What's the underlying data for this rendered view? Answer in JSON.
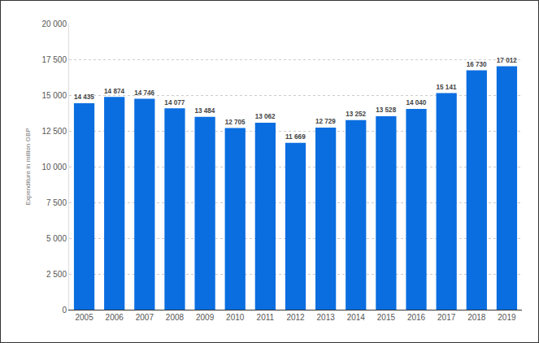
{
  "chart_data": {
    "type": "bar",
    "y_axis_label": "Expenditure in million GBP",
    "categories": [
      "2005",
      "2006",
      "2007",
      "2008",
      "2009",
      "2010",
      "2011",
      "2012",
      "2013",
      "2014",
      "2015",
      "2016",
      "2017",
      "2018",
      "2019"
    ],
    "values": [
      14435,
      14874,
      14746,
      14077,
      13484,
      12705,
      13062,
      11669,
      12729,
      13252,
      13528,
      14040,
      15141,
      16730,
      17012
    ],
    "value_labels": [
      "14 435",
      "14 874",
      "14 746",
      "14 077",
      "13 484",
      "12 705",
      "13 062",
      "11 669",
      "12 729",
      "13 252",
      "13 528",
      "14 040",
      "15 141",
      "16 730",
      "17 012"
    ],
    "color": "#0b6ee0",
    "ylim": [
      0,
      20000
    ],
    "yticks": [
      0,
      {
        "value": 2500,
        "label": "2 500"
      },
      {
        "value": 5000,
        "label": "5 000"
      },
      {
        "value": 7500,
        "label": "7 500"
      },
      {
        "value": 10000,
        "label": "10 000"
      },
      {
        "value": 12500,
        "label": "12 500"
      },
      {
        "value": 15000,
        "label": "15 000"
      },
      {
        "value": 17500,
        "label": "17 500"
      },
      {
        "value": 20000,
        "label": "20 000"
      }
    ],
    "grid": true,
    "data_labels": true
  }
}
